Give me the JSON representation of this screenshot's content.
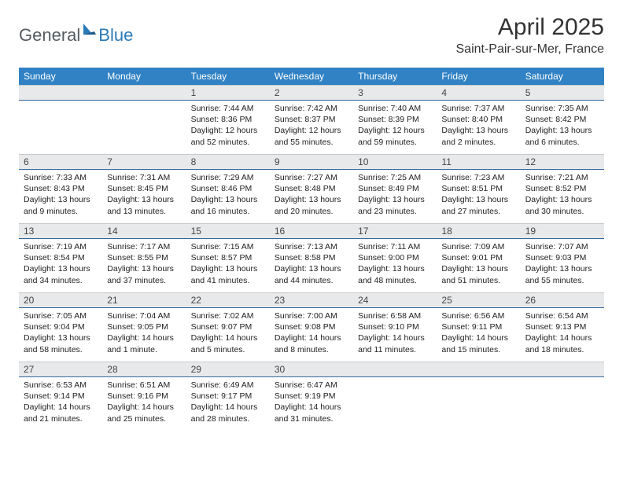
{
  "logo": {
    "textGeneral": "General",
    "textBlue": "Blue"
  },
  "title": "April 2025",
  "location": "Saint-Pair-sur-Mer, France",
  "colors": {
    "headerBg": "#3082c4",
    "headerText": "#ffffff",
    "dayNumBg": "#e8e9ea",
    "dayNumBorder": "#34679a",
    "logoGray": "#555b60",
    "logoBlue": "#2a7ab8"
  },
  "weekdays": [
    "Sunday",
    "Monday",
    "Tuesday",
    "Wednesday",
    "Thursday",
    "Friday",
    "Saturday"
  ],
  "weeks": [
    [
      null,
      null,
      {
        "n": "1",
        "sr": "Sunrise: 7:44 AM",
        "ss": "Sunset: 8:36 PM",
        "dl": "Daylight: 12 hours and 52 minutes."
      },
      {
        "n": "2",
        "sr": "Sunrise: 7:42 AM",
        "ss": "Sunset: 8:37 PM",
        "dl": "Daylight: 12 hours and 55 minutes."
      },
      {
        "n": "3",
        "sr": "Sunrise: 7:40 AM",
        "ss": "Sunset: 8:39 PM",
        "dl": "Daylight: 12 hours and 59 minutes."
      },
      {
        "n": "4",
        "sr": "Sunrise: 7:37 AM",
        "ss": "Sunset: 8:40 PM",
        "dl": "Daylight: 13 hours and 2 minutes."
      },
      {
        "n": "5",
        "sr": "Sunrise: 7:35 AM",
        "ss": "Sunset: 8:42 PM",
        "dl": "Daylight: 13 hours and 6 minutes."
      }
    ],
    [
      {
        "n": "6",
        "sr": "Sunrise: 7:33 AM",
        "ss": "Sunset: 8:43 PM",
        "dl": "Daylight: 13 hours and 9 minutes."
      },
      {
        "n": "7",
        "sr": "Sunrise: 7:31 AM",
        "ss": "Sunset: 8:45 PM",
        "dl": "Daylight: 13 hours and 13 minutes."
      },
      {
        "n": "8",
        "sr": "Sunrise: 7:29 AM",
        "ss": "Sunset: 8:46 PM",
        "dl": "Daylight: 13 hours and 16 minutes."
      },
      {
        "n": "9",
        "sr": "Sunrise: 7:27 AM",
        "ss": "Sunset: 8:48 PM",
        "dl": "Daylight: 13 hours and 20 minutes."
      },
      {
        "n": "10",
        "sr": "Sunrise: 7:25 AM",
        "ss": "Sunset: 8:49 PM",
        "dl": "Daylight: 13 hours and 23 minutes."
      },
      {
        "n": "11",
        "sr": "Sunrise: 7:23 AM",
        "ss": "Sunset: 8:51 PM",
        "dl": "Daylight: 13 hours and 27 minutes."
      },
      {
        "n": "12",
        "sr": "Sunrise: 7:21 AM",
        "ss": "Sunset: 8:52 PM",
        "dl": "Daylight: 13 hours and 30 minutes."
      }
    ],
    [
      {
        "n": "13",
        "sr": "Sunrise: 7:19 AM",
        "ss": "Sunset: 8:54 PM",
        "dl": "Daylight: 13 hours and 34 minutes."
      },
      {
        "n": "14",
        "sr": "Sunrise: 7:17 AM",
        "ss": "Sunset: 8:55 PM",
        "dl": "Daylight: 13 hours and 37 minutes."
      },
      {
        "n": "15",
        "sr": "Sunrise: 7:15 AM",
        "ss": "Sunset: 8:57 PM",
        "dl": "Daylight: 13 hours and 41 minutes."
      },
      {
        "n": "16",
        "sr": "Sunrise: 7:13 AM",
        "ss": "Sunset: 8:58 PM",
        "dl": "Daylight: 13 hours and 44 minutes."
      },
      {
        "n": "17",
        "sr": "Sunrise: 7:11 AM",
        "ss": "Sunset: 9:00 PM",
        "dl": "Daylight: 13 hours and 48 minutes."
      },
      {
        "n": "18",
        "sr": "Sunrise: 7:09 AM",
        "ss": "Sunset: 9:01 PM",
        "dl": "Daylight: 13 hours and 51 minutes."
      },
      {
        "n": "19",
        "sr": "Sunrise: 7:07 AM",
        "ss": "Sunset: 9:03 PM",
        "dl": "Daylight: 13 hours and 55 minutes."
      }
    ],
    [
      {
        "n": "20",
        "sr": "Sunrise: 7:05 AM",
        "ss": "Sunset: 9:04 PM",
        "dl": "Daylight: 13 hours and 58 minutes."
      },
      {
        "n": "21",
        "sr": "Sunrise: 7:04 AM",
        "ss": "Sunset: 9:05 PM",
        "dl": "Daylight: 14 hours and 1 minute."
      },
      {
        "n": "22",
        "sr": "Sunrise: 7:02 AM",
        "ss": "Sunset: 9:07 PM",
        "dl": "Daylight: 14 hours and 5 minutes."
      },
      {
        "n": "23",
        "sr": "Sunrise: 7:00 AM",
        "ss": "Sunset: 9:08 PM",
        "dl": "Daylight: 14 hours and 8 minutes."
      },
      {
        "n": "24",
        "sr": "Sunrise: 6:58 AM",
        "ss": "Sunset: 9:10 PM",
        "dl": "Daylight: 14 hours and 11 minutes."
      },
      {
        "n": "25",
        "sr": "Sunrise: 6:56 AM",
        "ss": "Sunset: 9:11 PM",
        "dl": "Daylight: 14 hours and 15 minutes."
      },
      {
        "n": "26",
        "sr": "Sunrise: 6:54 AM",
        "ss": "Sunset: 9:13 PM",
        "dl": "Daylight: 14 hours and 18 minutes."
      }
    ],
    [
      {
        "n": "27",
        "sr": "Sunrise: 6:53 AM",
        "ss": "Sunset: 9:14 PM",
        "dl": "Daylight: 14 hours and 21 minutes."
      },
      {
        "n": "28",
        "sr": "Sunrise: 6:51 AM",
        "ss": "Sunset: 9:16 PM",
        "dl": "Daylight: 14 hours and 25 minutes."
      },
      {
        "n": "29",
        "sr": "Sunrise: 6:49 AM",
        "ss": "Sunset: 9:17 PM",
        "dl": "Daylight: 14 hours and 28 minutes."
      },
      {
        "n": "30",
        "sr": "Sunrise: 6:47 AM",
        "ss": "Sunset: 9:19 PM",
        "dl": "Daylight: 14 hours and 31 minutes."
      },
      null,
      null,
      null
    ]
  ]
}
